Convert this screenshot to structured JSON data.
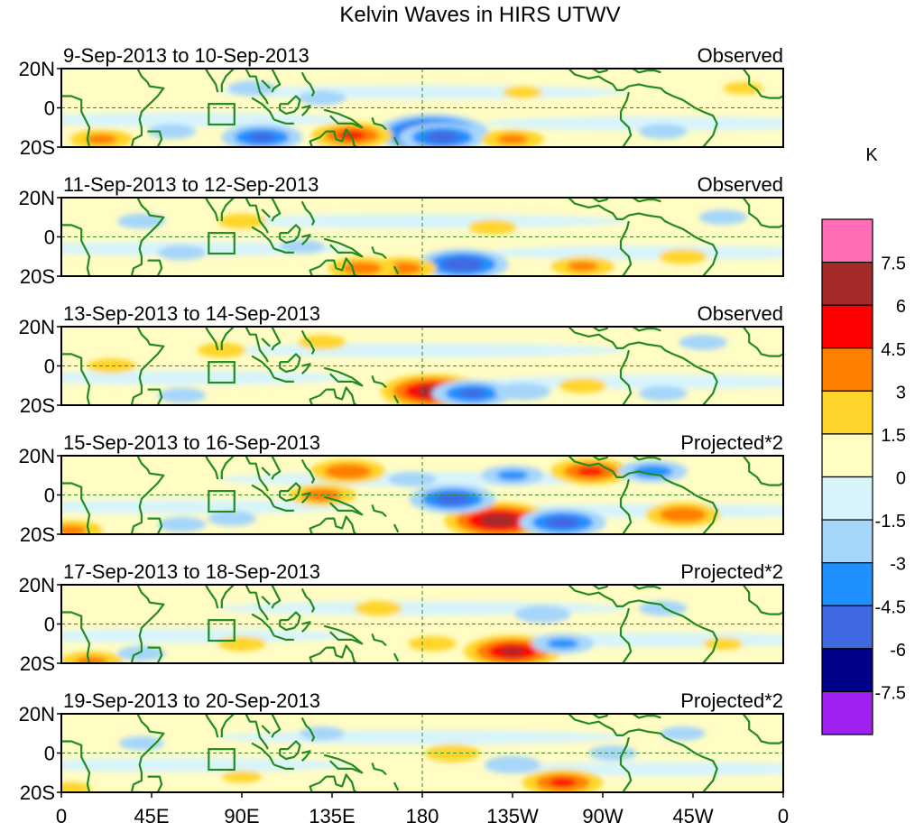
{
  "chart_data": {
    "type": "heatmap",
    "title": "Kelvin Waves in HIRS UTWV",
    "x_tick_labels": [
      "0",
      "45E",
      "90E",
      "135E",
      "180",
      "135W",
      "90W",
      "45W",
      "0"
    ],
    "x_range_deg_east": [
      0,
      360
    ],
    "y_tick_labels": [
      "20N",
      "0",
      "20S"
    ],
    "y_range_deg": [
      -20,
      20
    ],
    "colorbar": {
      "unit": "K",
      "levels": [
        "7.5",
        "6",
        "4.5",
        "3",
        "1.5",
        "0",
        "-1.5",
        "-3",
        "-4.5",
        "-6",
        "-7.5"
      ],
      "colors": [
        "#ff6eb4",
        "#a52a2a",
        "#ff0000",
        "#ff7f00",
        "#ffd52b",
        "#fffcc4",
        "#d8f4fb",
        "#a6d6fa",
        "#1e90ff",
        "#4169e1",
        "#00008b",
        "#a020f0"
      ]
    },
    "panels": [
      {
        "date_label": "9-Sep-2013 to 10-Sep-2013",
        "kind": "Observed",
        "blobs": [
          {
            "lon": 185,
            "lat": -13,
            "value": -7.5
          },
          {
            "lon": 190,
            "lat": -15,
            "value": -5
          },
          {
            "lon": 145,
            "lat": -14,
            "value": 4.5
          },
          {
            "lon": 100,
            "lat": -15,
            "value": -4.5
          },
          {
            "lon": 225,
            "lat": -16,
            "value": 3
          },
          {
            "lon": 20,
            "lat": -16,
            "value": 3
          },
          {
            "lon": 55,
            "lat": -12,
            "value": -2
          },
          {
            "lon": 300,
            "lat": -12,
            "value": -2
          },
          {
            "lon": 95,
            "lat": 10,
            "value": -2
          },
          {
            "lon": 230,
            "lat": 8,
            "value": 1.5
          },
          {
            "lon": 130,
            "lat": 5,
            "value": -2
          },
          {
            "lon": 340,
            "lat": 10,
            "value": 1.5
          }
        ]
      },
      {
        "date_label": "11-Sep-2013 to 12-Sep-2013",
        "kind": "Observed",
        "blobs": [
          {
            "lon": 200,
            "lat": -14,
            "value": -5.5
          },
          {
            "lon": 170,
            "lat": -16,
            "value": 3.5
          },
          {
            "lon": 150,
            "lat": -16,
            "value": 3.5
          },
          {
            "lon": 260,
            "lat": -15,
            "value": 3
          },
          {
            "lon": 90,
            "lat": 8,
            "value": 2
          },
          {
            "lon": 215,
            "lat": 5,
            "value": 2
          },
          {
            "lon": 60,
            "lat": -8,
            "value": -2
          },
          {
            "lon": 310,
            "lat": -10,
            "value": 2
          },
          {
            "lon": 40,
            "lat": 8,
            "value": -2
          },
          {
            "lon": 330,
            "lat": 10,
            "value": -2
          },
          {
            "lon": 120,
            "lat": -5,
            "value": -1.8
          }
        ]
      },
      {
        "date_label": "13-Sep-2013 to 14-Sep-2013",
        "kind": "Observed",
        "blobs": [
          {
            "lon": 185,
            "lat": -13,
            "value": 6.5
          },
          {
            "lon": 205,
            "lat": -14,
            "value": -4.5
          },
          {
            "lon": 230,
            "lat": -13,
            "value": -2.5
          },
          {
            "lon": 25,
            "lat": 0,
            "value": 2
          },
          {
            "lon": 80,
            "lat": 8,
            "value": 2
          },
          {
            "lon": 130,
            "lat": 12,
            "value": 2
          },
          {
            "lon": 260,
            "lat": -10,
            "value": 2
          },
          {
            "lon": 300,
            "lat": -14,
            "value": -2
          },
          {
            "lon": 320,
            "lat": 12,
            "value": -2
          },
          {
            "lon": 60,
            "lat": -15,
            "value": -2
          }
        ]
      },
      {
        "date_label": "15-Sep-2013 to 16-Sep-2013",
        "kind": "Projected*2",
        "blobs": [
          {
            "lon": 218,
            "lat": -13,
            "value": 7
          },
          {
            "lon": 195,
            "lat": -2,
            "value": -5
          },
          {
            "lon": 250,
            "lat": -14,
            "value": -5
          },
          {
            "lon": 264,
            "lat": 12,
            "value": 4.5
          },
          {
            "lon": 310,
            "lat": -10,
            "value": 4
          },
          {
            "lon": 143,
            "lat": 12,
            "value": 4
          },
          {
            "lon": 130,
            "lat": 0,
            "value": 3.5
          },
          {
            "lon": 225,
            "lat": 10,
            "value": -3
          },
          {
            "lon": 295,
            "lat": 12,
            "value": -3.5
          },
          {
            "lon": 5,
            "lat": -18,
            "value": 3
          },
          {
            "lon": 60,
            "lat": -15,
            "value": -2
          },
          {
            "lon": 175,
            "lat": 8,
            "value": -2
          },
          {
            "lon": 85,
            "lat": -12,
            "value": -2
          }
        ]
      },
      {
        "date_label": "17-Sep-2013 to 18-Sep-2013",
        "kind": "Projected*2",
        "blobs": [
          {
            "lon": 225,
            "lat": -14,
            "value": 6
          },
          {
            "lon": 250,
            "lat": -10,
            "value": -3
          },
          {
            "lon": 240,
            "lat": 5,
            "value": -2.5
          },
          {
            "lon": 158,
            "lat": 8,
            "value": 2
          },
          {
            "lon": 185,
            "lat": -10,
            "value": 2
          },
          {
            "lon": 90,
            "lat": -10,
            "value": 2
          },
          {
            "lon": 300,
            "lat": 8,
            "value": -2
          },
          {
            "lon": 40,
            "lat": -15,
            "value": -2
          },
          {
            "lon": 15,
            "lat": -19,
            "value": 3
          },
          {
            "lon": 330,
            "lat": -10,
            "value": 1.5
          }
        ]
      },
      {
        "date_label": "19-Sep-2013 to 20-Sep-2013",
        "kind": "Projected*2",
        "blobs": [
          {
            "lon": 250,
            "lat": -15,
            "value": 4.5
          },
          {
            "lon": 195,
            "lat": 0,
            "value": 2.5
          },
          {
            "lon": 225,
            "lat": -6,
            "value": -2.5
          },
          {
            "lon": 275,
            "lat": 0,
            "value": -2
          },
          {
            "lon": 130,
            "lat": 10,
            "value": -1.8
          },
          {
            "lon": 90,
            "lat": -12,
            "value": 1.5
          },
          {
            "lon": 40,
            "lat": 5,
            "value": -1.8
          },
          {
            "lon": 310,
            "lat": 10,
            "value": -1.8
          },
          {
            "lon": 5,
            "lat": -18,
            "value": 1.5
          }
        ]
      }
    ]
  }
}
